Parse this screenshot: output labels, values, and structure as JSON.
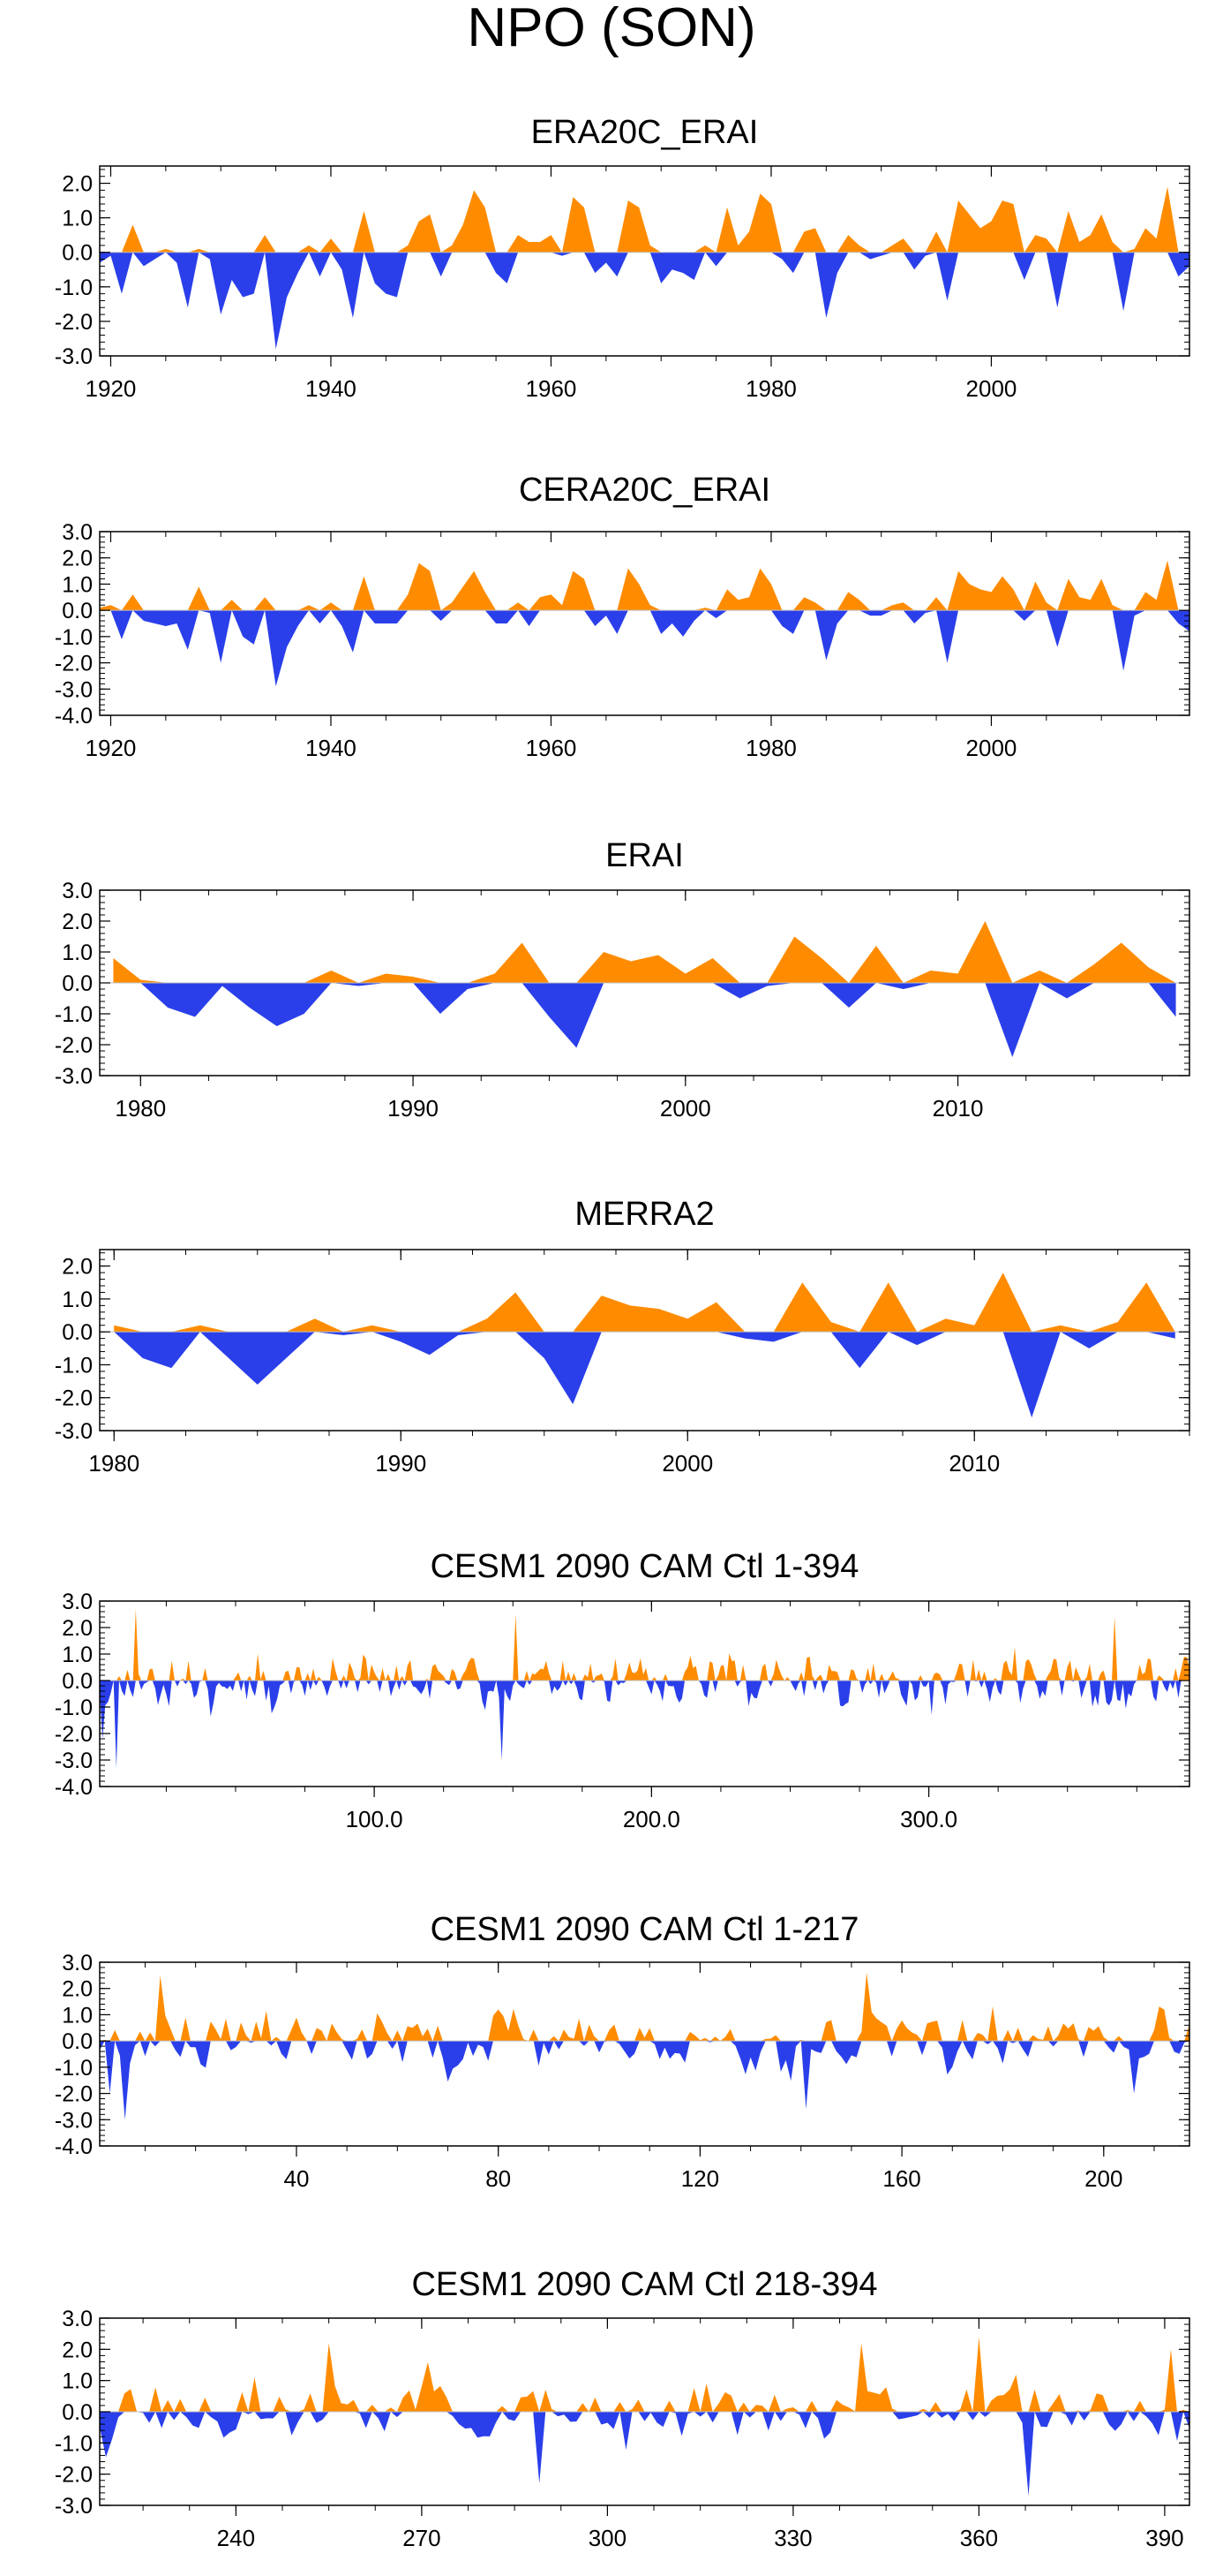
{
  "figure_title": "NPO (SON)",
  "colors": {
    "positive": "#FF8C00",
    "negative": "#2A3FEA",
    "axis": "#000000"
  },
  "chart_data": [
    {
      "type": "area",
      "title": "ERA20C_ERAI",
      "xlim": [
        1919,
        2018
      ],
      "ylim": [
        -3.0,
        2.5
      ],
      "xticks": [
        1920,
        1940,
        1960,
        1980,
        2000
      ],
      "xtick_labels": [
        "1920",
        "1940",
        "1960",
        "1980",
        "2000"
      ],
      "yticks": [
        -3.0,
        -2.0,
        -1.0,
        0.0,
        1.0,
        2.0
      ],
      "ytick_labels": [
        "-3.0",
        "-2.0",
        "-1.0",
        "0.0",
        "1.0",
        "2.0"
      ],
      "x": [
        1919,
        1920,
        1921,
        1922,
        1923,
        1924,
        1925,
        1926,
        1927,
        1928,
        1929,
        1930,
        1931,
        1932,
        1933,
        1934,
        1935,
        1936,
        1937,
        1938,
        1939,
        1940,
        1941,
        1942,
        1943,
        1944,
        1945,
        1946,
        1947,
        1948,
        1949,
        1950,
        1951,
        1952,
        1953,
        1954,
        1955,
        1956,
        1957,
        1958,
        1959,
        1960,
        1961,
        1962,
        1963,
        1964,
        1965,
        1966,
        1967,
        1968,
        1969,
        1970,
        1971,
        1972,
        1973,
        1974,
        1975,
        1976,
        1977,
        1978,
        1979,
        1980,
        1981,
        1982,
        1983,
        1984,
        1985,
        1986,
        1987,
        1988,
        1989,
        1990,
        1991,
        1992,
        1993,
        1994,
        1995,
        1996,
        1997,
        1998,
        1999,
        2000,
        2001,
        2002,
        2003,
        2004,
        2005,
        2006,
        2007,
        2008,
        2009,
        2010,
        2011,
        2012,
        2013,
        2014,
        2015,
        2016,
        2017,
        2018
      ],
      "values": [
        -0.3,
        -0.1,
        -1.2,
        0.8,
        -0.4,
        -0.2,
        0.1,
        -0.3,
        -1.6,
        0.1,
        -0.2,
        -1.8,
        -0.8,
        -1.3,
        -1.2,
        0.5,
        -2.8,
        -1.3,
        -0.6,
        0.2,
        -0.7,
        0.4,
        -0.5,
        -1.9,
        1.2,
        -0.9,
        -1.2,
        -1.3,
        0.2,
        0.9,
        1.1,
        -0.7,
        0.2,
        0.8,
        1.8,
        1.3,
        -0.6,
        -0.9,
        0.5,
        0.3,
        0.3,
        0.5,
        -0.1,
        1.6,
        1.3,
        -0.6,
        -0.3,
        -0.7,
        1.5,
        1.3,
        0.2,
        -0.9,
        -0.5,
        -0.6,
        -0.8,
        0.2,
        -0.4,
        1.3,
        0.2,
        0.6,
        1.7,
        1.4,
        -0.2,
        -0.6,
        0.6,
        0.7,
        -1.9,
        -0.6,
        0.5,
        0.2,
        -0.2,
        -0.1,
        0.2,
        0.4,
        -0.5,
        -0.1,
        0.6,
        -1.4,
        1.5,
        1.1,
        0.7,
        0.9,
        1.5,
        1.4,
        -0.8,
        0.5,
        0.4,
        -1.6,
        1.2,
        0.3,
        0.5,
        1.1,
        0.3,
        -1.7,
        0.1,
        0.7,
        0.4,
        1.9,
        -0.7,
        -0.4
      ]
    },
    {
      "type": "area",
      "title": "CERA20C_ERAI",
      "xlim": [
        1919,
        2018
      ],
      "ylim": [
        -4.0,
        3.0
      ],
      "xticks": [
        1920,
        1940,
        1960,
        1980,
        2000
      ],
      "xtick_labels": [
        "1920",
        "1940",
        "1960",
        "1980",
        "2000"
      ],
      "yticks": [
        -4.0,
        -3.0,
        -2.0,
        -1.0,
        0.0,
        1.0,
        2.0,
        3.0
      ],
      "ytick_labels": [
        "-4.0",
        "-3.0",
        "-2.0",
        "-1.0",
        "0.0",
        "1.0",
        "2.0",
        "3.0"
      ],
      "x": [
        1919,
        1920,
        1921,
        1922,
        1923,
        1924,
        1925,
        1926,
        1927,
        1928,
        1929,
        1930,
        1931,
        1932,
        1933,
        1934,
        1935,
        1936,
        1937,
        1938,
        1939,
        1940,
        1941,
        1942,
        1943,
        1944,
        1945,
        1946,
        1947,
        1948,
        1949,
        1950,
        1951,
        1952,
        1953,
        1954,
        1955,
        1956,
        1957,
        1958,
        1959,
        1960,
        1961,
        1962,
        1963,
        1964,
        1965,
        1966,
        1967,
        1968,
        1969,
        1970,
        1971,
        1972,
        1973,
        1974,
        1975,
        1976,
        1977,
        1978,
        1979,
        1980,
        1981,
        1982,
        1983,
        1984,
        1985,
        1986,
        1987,
        1988,
        1989,
        1990,
        1991,
        1992,
        1993,
        1994,
        1995,
        1996,
        1997,
        1998,
        1999,
        2000,
        2001,
        2002,
        2003,
        2004,
        2005,
        2006,
        2007,
        2008,
        2009,
        2010,
        2011,
        2012,
        2013,
        2014,
        2015,
        2016,
        2017,
        2018
      ],
      "values": [
        0.1,
        0.2,
        -1.1,
        0.6,
        -0.4,
        -0.5,
        -0.6,
        -0.5,
        -1.5,
        0.9,
        -0.1,
        -2.0,
        0.4,
        -1.0,
        -1.3,
        0.5,
        -2.9,
        -1.4,
        -0.6,
        0.2,
        -0.5,
        0.3,
        -0.6,
        -1.6,
        1.3,
        -0.5,
        -0.5,
        -0.5,
        0.6,
        1.8,
        1.5,
        -0.4,
        0.3,
        0.9,
        1.5,
        0.7,
        -0.5,
        -0.5,
        0.3,
        -0.6,
        0.5,
        0.6,
        0.2,
        1.5,
        1.2,
        -0.6,
        -0.2,
        -0.9,
        1.6,
        1.0,
        0.2,
        -0.9,
        -0.5,
        -1.0,
        -0.4,
        0.1,
        -0.3,
        0.8,
        0.4,
        0.5,
        1.6,
        1.0,
        -0.6,
        -0.9,
        0.5,
        0.3,
        -1.9,
        -0.5,
        0.7,
        0.4,
        -0.2,
        -0.2,
        0.2,
        0.3,
        -0.5,
        -0.1,
        0.5,
        -2.0,
        1.5,
        1.0,
        0.8,
        0.7,
        1.3,
        0.8,
        -0.4,
        1.1,
        0.3,
        -1.4,
        1.2,
        0.5,
        0.4,
        1.2,
        0.2,
        -2.3,
        -0.2,
        0.7,
        0.4,
        1.9,
        -0.5,
        -0.8
      ]
    },
    {
      "type": "area",
      "title": "ERAI",
      "xlim": [
        1978.5,
        2018.5
      ],
      "ylim": [
        -3.0,
        3.0
      ],
      "xticks": [
        1980,
        1990,
        2000,
        2010
      ],
      "xtick_labels": [
        "1980",
        "1990",
        "2000",
        "2010"
      ],
      "yticks": [
        -3.0,
        -2.0,
        -1.0,
        0.0,
        1.0,
        2.0,
        3.0
      ],
      "ytick_labels": [
        "-3.0",
        "-2.0",
        "-1.0",
        "0.0",
        "1.0",
        "2.0",
        "3.0"
      ],
      "x": [
        1979,
        1980,
        1981,
        1982,
        1983,
        1984,
        1985,
        1986,
        1987,
        1988,
        1989,
        1990,
        1991,
        1992,
        1993,
        1994,
        1995,
        1996,
        1997,
        1998,
        1999,
        2000,
        2001,
        2002,
        2003,
        2004,
        2005,
        2006,
        2007,
        2008,
        2009,
        2010,
        2011,
        2012,
        2013,
        2014,
        2015,
        2016,
        2017,
        2018
      ],
      "values": [
        0.8,
        0.1,
        -0.8,
        -1.1,
        -0.1,
        -0.8,
        -1.4,
        -1.0,
        0.4,
        -0.1,
        0.3,
        0.2,
        -1.0,
        -0.2,
        0.3,
        1.3,
        -1.1,
        -2.1,
        1.0,
        0.7,
        0.9,
        0.3,
        0.8,
        -0.5,
        -0.1,
        1.5,
        0.8,
        -0.8,
        1.2,
        -0.2,
        0.4,
        0.3,
        2.0,
        -2.4,
        0.4,
        -0.5,
        0.6,
        1.3,
        0.5,
        -1.1
      ]
    },
    {
      "type": "area",
      "title": "MERRA2",
      "xlim": [
        1979.5,
        2017.5
      ],
      "ylim": [
        -3.0,
        2.5
      ],
      "xticks": [
        1980,
        1990,
        2000,
        2010
      ],
      "xtick_labels": [
        "1980",
        "1990",
        "2000",
        "2010"
      ],
      "yticks": [
        -3.0,
        -2.0,
        -1.0,
        0.0,
        1.0,
        2.0
      ],
      "ytick_labels": [
        "-3.0",
        "-2.0",
        "-1.0",
        "0.0",
        "1.0",
        "2.0"
      ],
      "x": [
        1980,
        1981,
        1982,
        1983,
        1984,
        1985,
        1986,
        1987,
        1988,
        1989,
        1990,
        1991,
        1992,
        1993,
        1994,
        1995,
        1996,
        1997,
        1998,
        1999,
        2000,
        2001,
        2002,
        2003,
        2004,
        2005,
        2006,
        2007,
        2008,
        2009,
        2010,
        2011,
        2012,
        2013,
        2014,
        2015,
        2016,
        2017
      ],
      "values": [
        0.2,
        -0.8,
        -1.1,
        0.2,
        -0.8,
        -1.6,
        -0.8,
        0.4,
        -0.1,
        0.2,
        -0.3,
        -0.7,
        -0.1,
        0.4,
        1.2,
        -0.8,
        -2.2,
        1.1,
        0.8,
        0.7,
        0.4,
        0.9,
        -0.2,
        -0.3,
        1.5,
        0.3,
        -1.1,
        1.5,
        -0.4,
        0.4,
        0.2,
        1.8,
        -2.6,
        0.2,
        -0.5,
        0.3,
        1.5,
        -0.2
      ]
    },
    {
      "type": "area",
      "title": "CESM1 2090 CAM Ctl 1-394",
      "xlim": [
        1,
        394
      ],
      "ylim": [
        -4.0,
        3.0
      ],
      "xticks": [
        100,
        200,
        300
      ],
      "xtick_labels": [
        "100.0",
        "200.0",
        "300.0"
      ],
      "yticks": [
        -4.0,
        -3.0,
        -2.0,
        -1.0,
        0.0,
        1.0,
        2.0,
        3.0
      ],
      "ytick_labels": [
        "-4.0",
        "-3.0",
        "-2.0",
        "-1.0",
        "0.0",
        "1.0",
        "2.0",
        "3.0"
      ],
      "generator": {
        "length": 394,
        "seed": 11,
        "amplitude": 0.95,
        "bursts": [
          [
            1,
            -2.2
          ],
          [
            6,
            -3.3
          ],
          [
            13,
            2.7
          ],
          [
            145,
            -3.0
          ],
          [
            150,
            2.5
          ],
          [
            366,
            2.4
          ]
        ]
      }
    },
    {
      "type": "area",
      "title": "CESM1 2090 CAM Ctl 1-217",
      "xlim": [
        1,
        217
      ],
      "ylim": [
        -4.0,
        3.0
      ],
      "xticks": [
        40,
        80,
        120,
        160,
        200
      ],
      "xtick_labels": [
        "40",
        "80",
        "120",
        "160",
        "200"
      ],
      "yticks": [
        -4.0,
        -3.0,
        -2.0,
        -1.0,
        0.0,
        1.0,
        2.0,
        3.0
      ],
      "ytick_labels": [
        "-4.0",
        "-3.0",
        "-2.0",
        "-1.0",
        "0.0",
        "1.0",
        "2.0",
        "3.0"
      ],
      "generator": {
        "length": 217,
        "seed": 23,
        "amplitude": 1.0,
        "bursts": [
          [
            2,
            -2.0
          ],
          [
            5,
            -3.0
          ],
          [
            12,
            2.5
          ],
          [
            140,
            -2.6
          ],
          [
            152,
            2.6
          ],
          [
            205,
            -2.0
          ]
        ]
      }
    },
    {
      "type": "area",
      "title": "CESM1 2090 CAM Ctl 218-394",
      "xlim": [
        218,
        394
      ],
      "ylim": [
        -3.0,
        3.0
      ],
      "xticks": [
        240,
        270,
        300,
        330,
        360,
        390
      ],
      "xtick_labels": [
        "240",
        "270",
        "300",
        "330",
        "360",
        "390"
      ],
      "yticks": [
        -3.0,
        -2.0,
        -1.0,
        0.0,
        1.0,
        2.0,
        3.0
      ],
      "ytick_labels": [
        "-3.0",
        "-2.0",
        "-1.0",
        "0.0",
        "1.0",
        "2.0",
        "3.0"
      ],
      "generator": {
        "length": 177,
        "seed": 37,
        "amplitude": 1.0,
        "bursts": [
          [
            37,
            2.2
          ],
          [
            71,
            -2.3
          ],
          [
            123,
            2.2
          ],
          [
            142,
            2.4
          ],
          [
            150,
            -2.7
          ],
          [
            173,
            2.0
          ]
        ]
      }
    }
  ]
}
